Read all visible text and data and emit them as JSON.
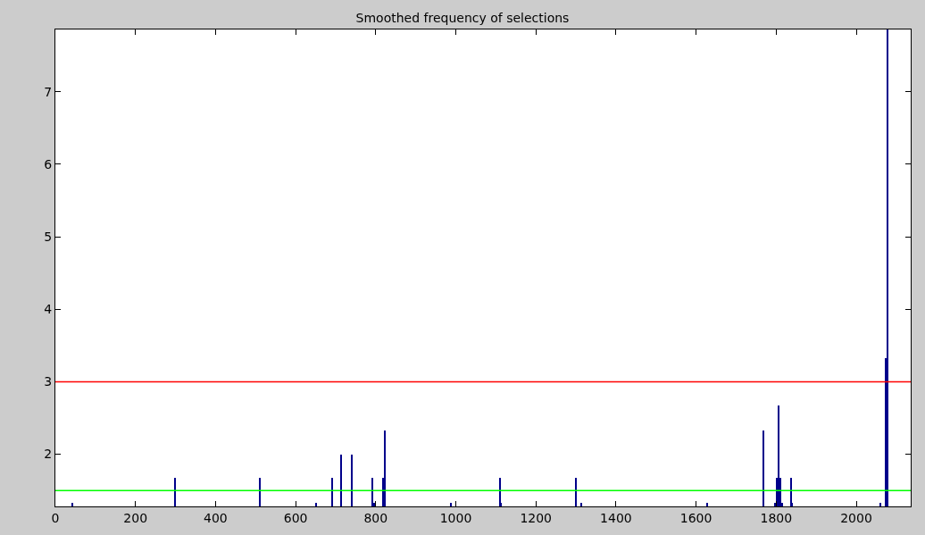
{
  "chart_data": {
    "type": "bar",
    "title": "Smoothed frequency of selections",
    "x": [
      42,
      298,
      511,
      651,
      692,
      713,
      741,
      791,
      796,
      818,
      822,
      988,
      1110,
      1113,
      1300,
      1313,
      1627,
      1768,
      1798,
      1802,
      1806,
      1810,
      1814,
      1837,
      1840,
      2060,
      2074,
      2078
    ],
    "series": [
      {
        "color": "#00008b",
        "values": [
          1.33,
          1.67,
          1.67,
          1.33,
          1.67,
          2.0,
          2.0,
          1.67,
          1.33,
          1.67,
          2.33,
          1.33,
          1.67,
          1.33,
          1.67,
          1.33,
          1.33,
          2.33,
          1.33,
          1.67,
          2.67,
          1.67,
          1.33,
          1.67,
          1.33,
          1.33,
          3.33,
          7.86
        ]
      }
    ],
    "xlim": [
      0,
      2136
    ],
    "xticks": [
      0,
      200,
      400,
      600,
      800,
      1000,
      1200,
      1400,
      1600,
      1800,
      2000
    ],
    "ylim": [
      1.28,
      7.86
    ],
    "yticks": [
      2,
      3,
      4,
      5,
      6,
      7
    ],
    "ref_lines": [
      {
        "axis": "y",
        "value": 3,
        "color": "#ff0000"
      },
      {
        "axis": "y",
        "value": 1.5,
        "color": "#00ff00"
      }
    ]
  }
}
